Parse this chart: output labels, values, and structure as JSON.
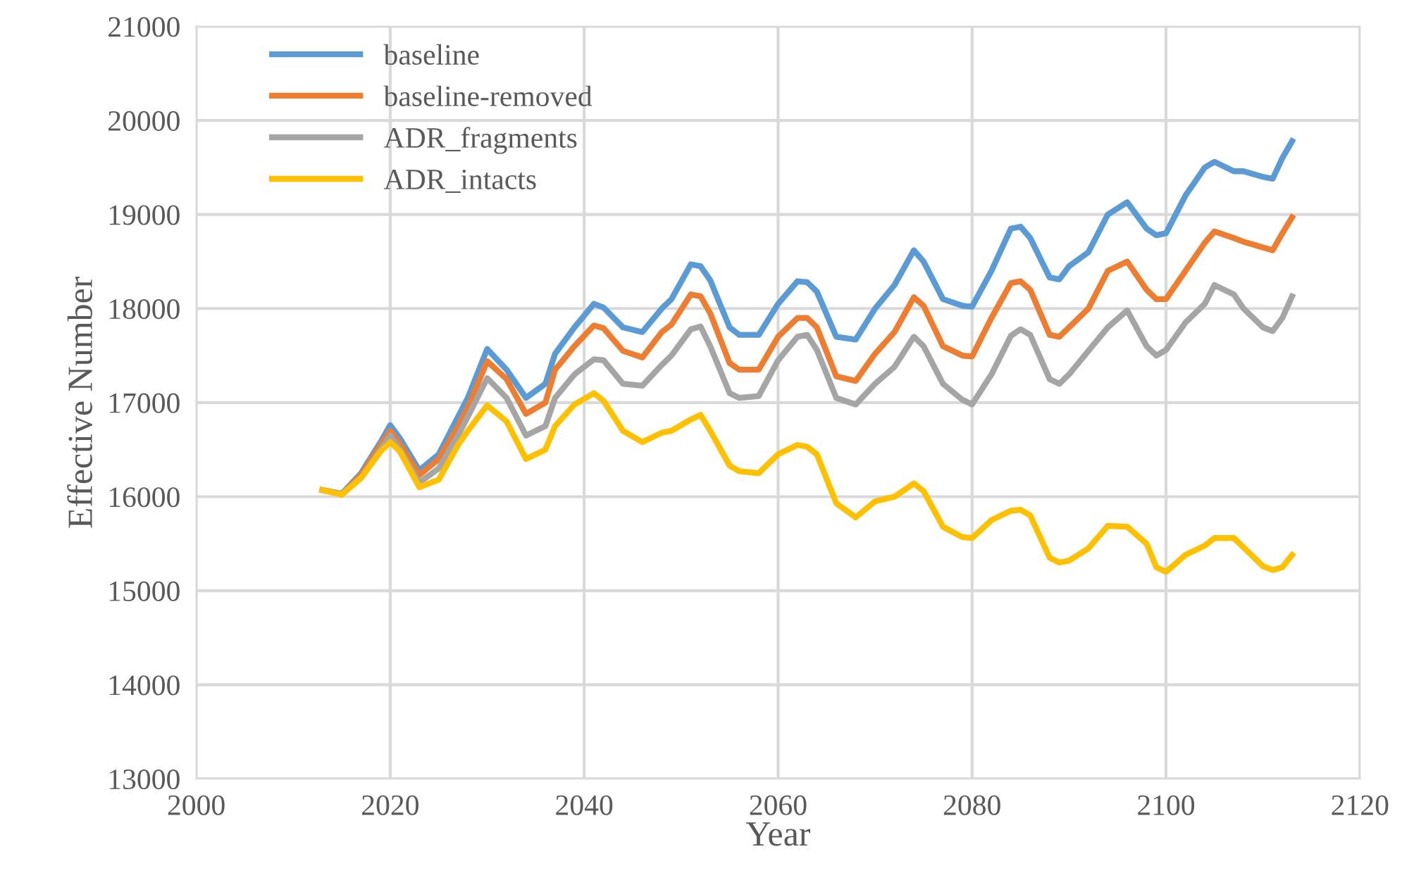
{
  "chart_data": {
    "type": "line",
    "xlabel": "Year",
    "ylabel": "Effective Number",
    "x": [
      2013,
      2015,
      2017,
      2019,
      2020,
      2021,
      2023,
      2025,
      2027,
      2028,
      2030,
      2032,
      2034,
      2036,
      2037,
      2039,
      2041,
      2042,
      2044,
      2046,
      2048,
      2049,
      2051,
      2052,
      2053,
      2055,
      2056,
      2058,
      2060,
      2062,
      2063,
      2064,
      2066,
      2068,
      2070,
      2072,
      2074,
      2075,
      2077,
      2079,
      2080,
      2082,
      2084,
      2085,
      2086,
      2088,
      2089,
      2090,
      2092,
      2094,
      2096,
      2098,
      2099,
      2100,
      2102,
      2104,
      2105,
      2107,
      2108,
      2110,
      2111,
      2112,
      2113
    ],
    "series": [
      {
        "name": "baseline",
        "color": "#5b9bd5",
        "values": [
          null,
          16030,
          16250,
          16580,
          16760,
          16620,
          16280,
          16450,
          16850,
          17050,
          17570,
          17350,
          17050,
          17200,
          17520,
          17800,
          18050,
          18010,
          17800,
          17750,
          18000,
          18100,
          18470,
          18450,
          18300,
          17800,
          17720,
          17720,
          18050,
          18290,
          18280,
          18180,
          17700,
          17670,
          18000,
          18250,
          18620,
          18500,
          18100,
          18030,
          18020,
          18400,
          18850,
          18870,
          18750,
          18330,
          18310,
          18450,
          18600,
          19000,
          19130,
          18850,
          18780,
          18800,
          19200,
          19500,
          19560,
          19460,
          19460,
          19400,
          19380,
          19600,
          19780
        ]
      },
      {
        "name": "baseline-removed",
        "color": "#ed7d31",
        "values": [
          16070,
          16030,
          16230,
          16550,
          16700,
          16560,
          16230,
          16400,
          16750,
          16950,
          17440,
          17250,
          16880,
          17000,
          17350,
          17600,
          17820,
          17790,
          17550,
          17480,
          17750,
          17830,
          18150,
          18130,
          17950,
          17420,
          17350,
          17350,
          17700,
          17900,
          17900,
          17800,
          17280,
          17230,
          17520,
          17750,
          18120,
          18030,
          17600,
          17500,
          17490,
          17900,
          18270,
          18290,
          18200,
          17720,
          17700,
          17800,
          18000,
          18400,
          18500,
          18200,
          18100,
          18100,
          18400,
          18700,
          18820,
          18750,
          18710,
          18650,
          18620,
          18800,
          18970
        ]
      },
      {
        "name": "ADR_fragments",
        "color": "#a5a5a5",
        "values": [
          16070,
          16030,
          16200,
          16500,
          16650,
          16500,
          16150,
          16300,
          16650,
          16850,
          17260,
          17050,
          16650,
          16750,
          17050,
          17300,
          17460,
          17450,
          17200,
          17180,
          17400,
          17500,
          17780,
          17810,
          17600,
          17100,
          17050,
          17070,
          17450,
          17700,
          17720,
          17560,
          17050,
          16980,
          17200,
          17380,
          17700,
          17600,
          17200,
          17030,
          16980,
          17300,
          17710,
          17780,
          17720,
          17250,
          17200,
          17300,
          17550,
          17800,
          17980,
          17600,
          17500,
          17560,
          17850,
          18050,
          18250,
          18150,
          18000,
          17800,
          17760,
          17900,
          18130
        ]
      },
      {
        "name": "ADR_intacts",
        "color": "#ffc000",
        "values": [
          16070,
          16020,
          16200,
          16480,
          16580,
          16480,
          16100,
          16180,
          16550,
          16700,
          16970,
          16800,
          16400,
          16500,
          16750,
          16980,
          17100,
          17020,
          16700,
          16580,
          16680,
          16700,
          16820,
          16870,
          16700,
          16330,
          16270,
          16250,
          16450,
          16550,
          16530,
          16450,
          15930,
          15780,
          15950,
          16000,
          16140,
          16060,
          15680,
          15570,
          15560,
          15750,
          15850,
          15860,
          15800,
          15350,
          15300,
          15320,
          15450,
          15690,
          15680,
          15500,
          15250,
          15200,
          15380,
          15480,
          15560,
          15560,
          15460,
          15260,
          15220,
          15250,
          15380
        ]
      }
    ],
    "xlim": [
      2000,
      2120
    ],
    "xticks": [
      2000,
      2020,
      2040,
      2060,
      2080,
      2100,
      2120
    ],
    "ylim": [
      13000,
      21000
    ],
    "yticks": [
      13000,
      14000,
      15000,
      16000,
      17000,
      18000,
      19000,
      20000,
      21000
    ],
    "grid": true,
    "legend": "top left",
    "marker": "none",
    "line_style": "solid"
  }
}
